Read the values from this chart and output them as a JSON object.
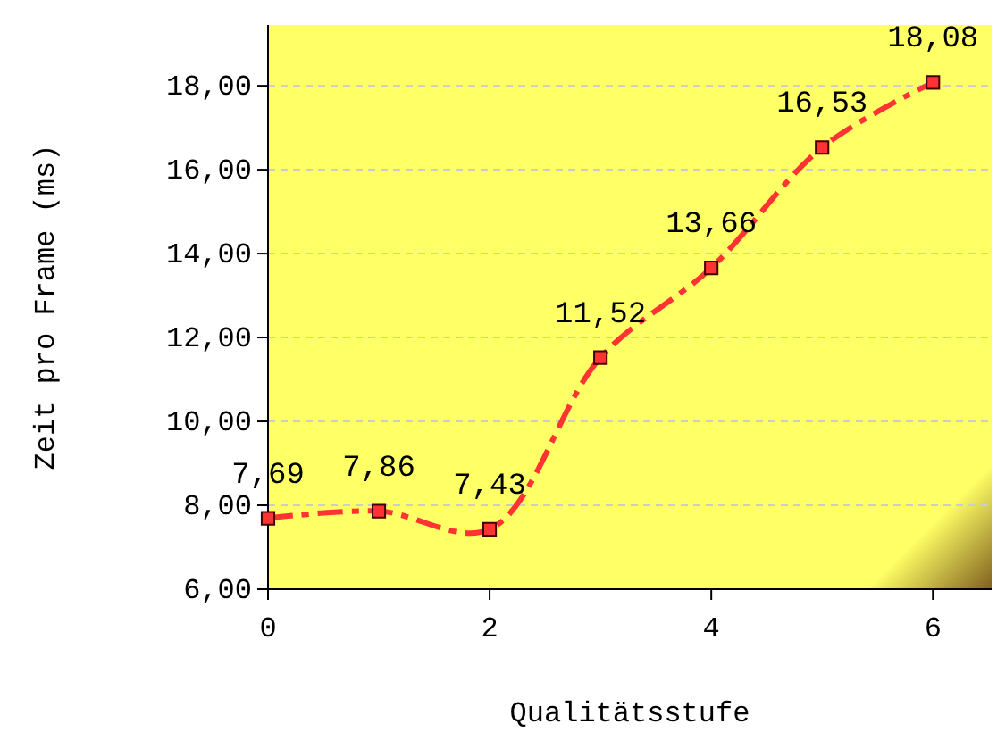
{
  "chart_data": {
    "type": "line",
    "xlabel": "Qualitätsstufe",
    "ylabel": "Zeit pro Frame (ms)",
    "x": [
      0,
      1,
      2,
      3,
      4,
      5,
      6
    ],
    "series": [
      {
        "color": "#ff3333",
        "values": [
          7.69,
          7.86,
          7.43,
          11.52,
          13.66,
          16.53,
          18.08
        ],
        "value_labels": [
          "7,69",
          "7,86",
          "7,43",
          "11,52",
          "13,66",
          "16,53",
          "18,08"
        ]
      }
    ],
    "xlim": [
      0,
      6.53
    ],
    "xticks": [
      0,
      2,
      4,
      6
    ],
    "ylim": [
      6,
      19.45
    ],
    "yticks": [
      {
        "value": 6,
        "label": "6,00"
      },
      {
        "value": 8,
        "label": "8,00"
      },
      {
        "value": 10,
        "label": "10,00"
      },
      {
        "value": 12,
        "label": "12,00"
      },
      {
        "value": 14,
        "label": "14,00"
      },
      {
        "value": 16,
        "label": "16,00"
      },
      {
        "value": 18,
        "label": "18,00"
      }
    ],
    "grid": "y",
    "marker": "square",
    "line_style": "dashed"
  }
}
